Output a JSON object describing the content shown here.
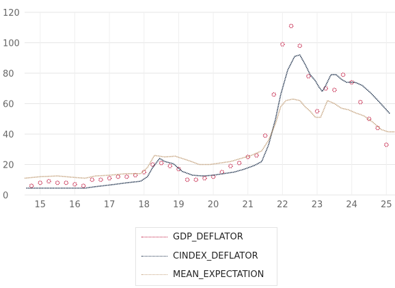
{
  "chart_data": {
    "type": "line",
    "title": "",
    "xlabel": "",
    "ylabel": "",
    "xlim": [
      2014.55,
      2025.25
    ],
    "ylim": [
      0,
      120
    ],
    "x_ticks": [
      {
        "value": 2015,
        "label": "15"
      },
      {
        "value": 2016,
        "label": "16"
      },
      {
        "value": 2017,
        "label": "17"
      },
      {
        "value": 2018,
        "label": "18"
      },
      {
        "value": 2019,
        "label": "19"
      },
      {
        "value": 2020,
        "label": "20"
      },
      {
        "value": 2021,
        "label": "21"
      },
      {
        "value": 2022,
        "label": "22"
      },
      {
        "value": 2023,
        "label": "23"
      },
      {
        "value": 2024,
        "label": "24"
      },
      {
        "value": 2025,
        "label": "25"
      }
    ],
    "y_ticks": [
      0,
      20,
      40,
      60,
      80,
      100,
      120
    ],
    "grid": true,
    "legend_position": "bottom-center",
    "series": [
      {
        "name": "GDP_DEFLATOR",
        "style": "markers",
        "color": "#c0143c",
        "points": [
          [
            2014.75,
            6
          ],
          [
            2015.0,
            8
          ],
          [
            2015.25,
            9
          ],
          [
            2015.5,
            8
          ],
          [
            2015.75,
            8
          ],
          [
            2016.0,
            7
          ],
          [
            2016.25,
            6
          ],
          [
            2016.5,
            10
          ],
          [
            2016.75,
            10
          ],
          [
            2017.0,
            11
          ],
          [
            2017.25,
            12
          ],
          [
            2017.5,
            12
          ],
          [
            2017.75,
            13
          ],
          [
            2018.0,
            15
          ],
          [
            2018.25,
            20
          ],
          [
            2018.5,
            21
          ],
          [
            2018.75,
            19
          ],
          [
            2019.0,
            17
          ],
          [
            2019.25,
            10
          ],
          [
            2019.5,
            10
          ],
          [
            2019.75,
            11
          ],
          [
            2020.0,
            12
          ],
          [
            2020.25,
            15
          ],
          [
            2020.5,
            19
          ],
          [
            2020.75,
            21
          ],
          [
            2021.0,
            25
          ],
          [
            2021.25,
            26
          ],
          [
            2021.5,
            39
          ],
          [
            2021.75,
            66
          ],
          [
            2022.0,
            99
          ],
          [
            2022.25,
            111
          ],
          [
            2022.5,
            98
          ],
          [
            2022.75,
            78
          ],
          [
            2023.0,
            55
          ],
          [
            2023.25,
            70
          ],
          [
            2023.5,
            69
          ],
          [
            2023.75,
            79
          ],
          [
            2024.0,
            74
          ],
          [
            2024.25,
            61
          ],
          [
            2024.5,
            50
          ],
          [
            2024.75,
            44
          ],
          [
            2025.0,
            33
          ]
        ]
      },
      {
        "name": "CINDEX_DEFLATOR",
        "style": "dotted-line",
        "color": "#1c2f4a",
        "points": [
          [
            2014.6,
            4.5
          ],
          [
            2015.0,
            4.5
          ],
          [
            2015.5,
            4.5
          ],
          [
            2016.0,
            4.5
          ],
          [
            2016.3,
            4.5
          ],
          [
            2016.6,
            5.5
          ],
          [
            2017.0,
            6.5
          ],
          [
            2017.5,
            8
          ],
          [
            2017.9,
            9
          ],
          [
            2018.1,
            12
          ],
          [
            2018.25,
            18
          ],
          [
            2018.45,
            24
          ],
          [
            2018.6,
            22
          ],
          [
            2018.85,
            20.5
          ],
          [
            2019.1,
            15.5
          ],
          [
            2019.4,
            13
          ],
          [
            2019.7,
            12.5
          ],
          [
            2020.0,
            13
          ],
          [
            2020.3,
            14
          ],
          [
            2020.6,
            15
          ],
          [
            2020.9,
            17
          ],
          [
            2021.2,
            19.5
          ],
          [
            2021.4,
            22
          ],
          [
            2021.6,
            33
          ],
          [
            2021.8,
            50
          ],
          [
            2021.95,
            66
          ],
          [
            2022.15,
            82
          ],
          [
            2022.35,
            91
          ],
          [
            2022.5,
            92
          ],
          [
            2022.65,
            86
          ],
          [
            2022.8,
            79
          ],
          [
            2022.95,
            75
          ],
          [
            2023.05,
            71
          ],
          [
            2023.15,
            68
          ],
          [
            2023.25,
            72
          ],
          [
            2023.4,
            79
          ],
          [
            2023.55,
            79
          ],
          [
            2023.7,
            76
          ],
          [
            2023.85,
            74
          ],
          [
            2024.1,
            74
          ],
          [
            2024.3,
            72
          ],
          [
            2024.55,
            67
          ],
          [
            2024.8,
            61
          ],
          [
            2025.0,
            56
          ],
          [
            2025.1,
            53.5
          ]
        ]
      },
      {
        "name": "MEAN_EXPECTATION",
        "style": "dotted-line",
        "color": "#c5a37e",
        "points": [
          [
            2014.55,
            11
          ],
          [
            2015.0,
            12
          ],
          [
            2015.5,
            12.5
          ],
          [
            2016.0,
            11.5
          ],
          [
            2016.3,
            11
          ],
          [
            2016.6,
            12.5
          ],
          [
            2017.0,
            13
          ],
          [
            2017.5,
            14
          ],
          [
            2017.9,
            14
          ],
          [
            2018.1,
            18
          ],
          [
            2018.3,
            26
          ],
          [
            2018.6,
            25
          ],
          [
            2018.9,
            25.5
          ],
          [
            2019.1,
            24
          ],
          [
            2019.3,
            22.5
          ],
          [
            2019.6,
            20
          ],
          [
            2019.9,
            20
          ],
          [
            2020.2,
            21
          ],
          [
            2020.5,
            22
          ],
          [
            2020.8,
            24
          ],
          [
            2021.1,
            26
          ],
          [
            2021.4,
            29
          ],
          [
            2021.6,
            36
          ],
          [
            2021.8,
            47
          ],
          [
            2021.95,
            58
          ],
          [
            2022.1,
            62
          ],
          [
            2022.3,
            63
          ],
          [
            2022.5,
            62
          ],
          [
            2022.65,
            58
          ],
          [
            2022.8,
            55
          ],
          [
            2022.95,
            51
          ],
          [
            2023.1,
            51
          ],
          [
            2023.3,
            62
          ],
          [
            2023.5,
            60
          ],
          [
            2023.7,
            57
          ],
          [
            2023.9,
            56
          ],
          [
            2024.1,
            54
          ],
          [
            2024.35,
            52
          ],
          [
            2024.6,
            48
          ],
          [
            2024.85,
            43
          ],
          [
            2025.05,
            41.5
          ],
          [
            2025.25,
            41.5
          ]
        ]
      }
    ]
  }
}
